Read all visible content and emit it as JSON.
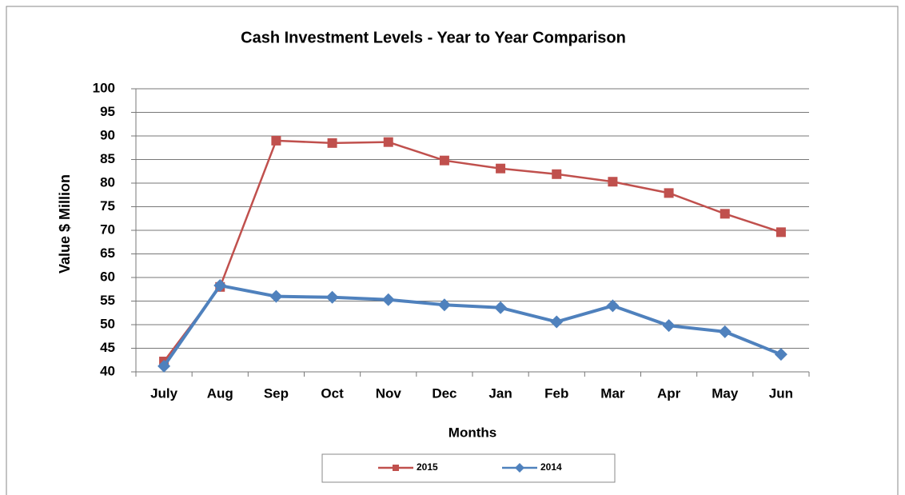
{
  "chart_data": {
    "type": "line",
    "title": "Cash Investment Levels - Year to Year Comparison",
    "x_label": "Months",
    "y_label": "Value $ Million",
    "categories": [
      "July",
      "Aug",
      "Sep",
      "Oct",
      "Nov",
      "Dec",
      "Jan",
      "Feb",
      "Mar",
      "Apr",
      "May",
      "Jun"
    ],
    "series": [
      {
        "name": "2015",
        "color": "#c0504d",
        "marker": "square",
        "values": [
          42.2,
          58,
          89,
          88.5,
          88.7,
          84.8,
          83.1,
          81.9,
          80.3,
          77.9,
          73.5,
          69.6
        ]
      },
      {
        "name": "2014",
        "color": "#4f81bd",
        "marker": "diamond",
        "values": [
          41.2,
          58.3,
          56,
          55.8,
          55.3,
          54.2,
          53.6,
          50.6,
          54,
          49.8,
          48.5,
          43.7
        ]
      }
    ],
    "ylim": [
      40,
      100
    ],
    "yticks": [
      40,
      45,
      50,
      55,
      60,
      65,
      70,
      75,
      80,
      85,
      90,
      95,
      100
    ],
    "grid": true,
    "legend": "bottom"
  }
}
